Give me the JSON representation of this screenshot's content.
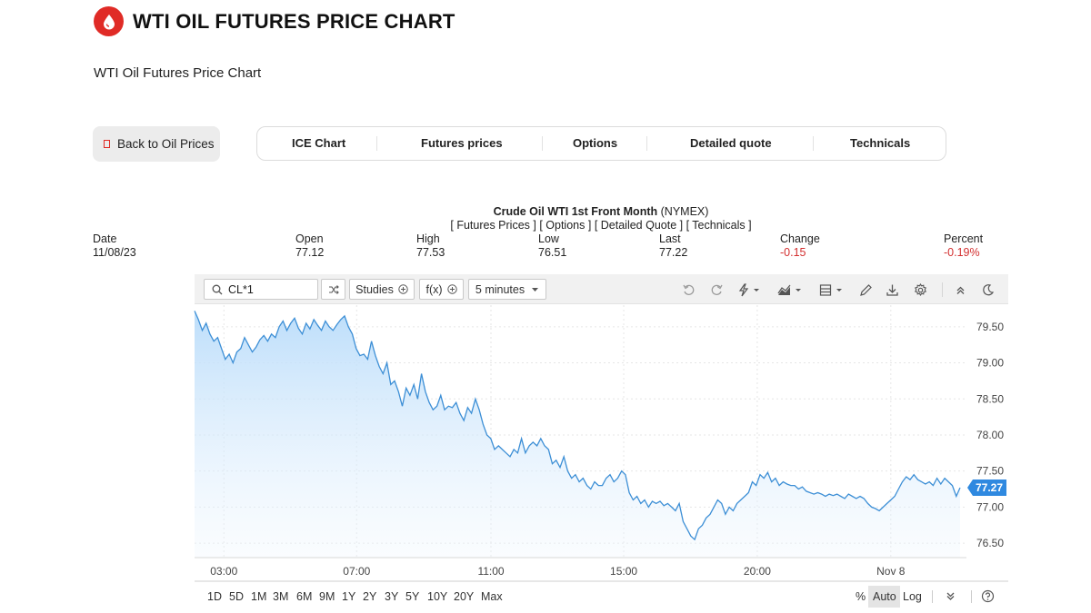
{
  "header": {
    "title": "WTI OIL FUTURES PRICE CHART",
    "subtitle": "WTI Oil Futures Price Chart",
    "logo_icon": "oil-drop-icon",
    "brand_color": "#e02b26"
  },
  "back_button": {
    "label": "Back to Oil Prices"
  },
  "tabs": [
    {
      "label": "ICE Chart"
    },
    {
      "label": "Futures prices"
    },
    {
      "label": "Options"
    },
    {
      "label": "Detailed quote"
    },
    {
      "label": "Technicals"
    }
  ],
  "quote": {
    "name": "Crude Oil WTI 1st Front Month",
    "exchange": "(NYMEX)",
    "links": [
      "[ Futures Prices ]",
      "[ Options ]",
      "[ Detailed Quote ]",
      "[ Technicals ]"
    ],
    "stats": [
      {
        "label": "Date",
        "value": "11/08/23"
      },
      {
        "label": "Open",
        "value": "77.12"
      },
      {
        "label": "High",
        "value": "77.53"
      },
      {
        "label": "Low",
        "value": "76.51"
      },
      {
        "label": "Last",
        "value": "77.22"
      },
      {
        "label": "Change",
        "value": "-0.15"
      },
      {
        "label": "Percent",
        "value": "-0.19%"
      }
    ],
    "negative_color": "#d32f2f"
  },
  "toolbar": {
    "symbol": "CL*1",
    "studies_label": "Studies",
    "fx_label": "f(x)",
    "interval_label": "5 minutes",
    "icons": [
      "undo-icon",
      "redo-icon",
      "lightning-icon",
      "chart-type-icon",
      "layout-icon",
      "pencil-icon",
      "download-icon",
      "settings-icon",
      "collapse-icon",
      "dark-mode-icon"
    ]
  },
  "ranges": [
    "1D",
    "5D",
    "1M",
    "3M",
    "6M",
    "9M",
    "1Y",
    "2Y",
    "3Y",
    "5Y",
    "10Y",
    "20Y",
    "Max"
  ],
  "scale_options": [
    "%",
    "Auto",
    "Log"
  ],
  "chart_data": {
    "type": "area",
    "x_tick_labels": [
      "03:00",
      "07:00",
      "11:00",
      "15:00",
      "20:00",
      "Nov 8"
    ],
    "y_tick_labels": [
      "79.50",
      "79.00",
      "78.50",
      "78.00",
      "77.50",
      "77.00",
      "76.50"
    ],
    "ylim": [
      76.3,
      79.8
    ],
    "last_value_label": "77.27",
    "line_color": "#3d8fd6",
    "accent_color": "#2f89e0",
    "grid": true,
    "values": [
      79.72,
      79.6,
      79.45,
      79.55,
      79.4,
      79.3,
      79.35,
      79.2,
      79.05,
      79.12,
      79.0,
      79.15,
      79.2,
      79.35,
      79.25,
      79.15,
      79.22,
      79.32,
      79.38,
      79.3,
      79.4,
      79.35,
      79.5,
      79.58,
      79.45,
      79.55,
      79.62,
      79.48,
      79.4,
      79.55,
      79.47,
      79.6,
      79.52,
      79.45,
      79.58,
      79.5,
      79.45,
      79.53,
      79.6,
      79.65,
      79.5,
      79.4,
      79.2,
      79.1,
      79.12,
      79.05,
      79.3,
      79.1,
      78.95,
      78.85,
      79.0,
      78.7,
      78.75,
      78.6,
      78.4,
      78.65,
      78.55,
      78.7,
      78.5,
      78.85,
      78.6,
      78.45,
      78.35,
      78.4,
      78.55,
      78.35,
      78.4,
      78.38,
      78.45,
      78.3,
      78.2,
      78.38,
      78.3,
      78.5,
      78.35,
      78.15,
      78.0,
      77.95,
      77.8,
      77.85,
      77.8,
      77.75,
      77.7,
      77.8,
      77.75,
      77.95,
      77.75,
      77.85,
      77.9,
      77.85,
      77.95,
      77.85,
      77.8,
      77.6,
      77.65,
      77.55,
      77.7,
      77.5,
      77.4,
      77.45,
      77.35,
      77.4,
      77.3,
      77.25,
      77.35,
      77.3,
      77.3,
      77.4,
      77.45,
      77.35,
      77.4,
      77.5,
      77.45,
      77.2,
      77.1,
      77.15,
      77.05,
      77.1,
      77.0,
      77.08,
      77.05,
      77.08,
      77.02,
      77.05,
      77.0,
      76.95,
      77.05,
      76.8,
      76.7,
      76.6,
      76.55,
      76.7,
      76.75,
      76.85,
      76.9,
      77.0,
      77.1,
      77.05,
      76.9,
      77.0,
      76.95,
      77.05,
      77.1,
      77.15,
      77.2,
      77.35,
      77.3,
      77.45,
      77.4,
      77.48,
      77.35,
      77.4,
      77.3,
      77.35,
      77.32,
      77.3,
      77.3,
      77.25,
      77.28,
      77.22,
      77.2,
      77.18,
      77.2,
      77.18,
      77.15,
      77.18,
      77.16,
      77.18,
      77.15,
      77.12,
      77.18,
      77.15,
      77.12,
      77.15,
      77.12,
      77.05,
      77.0,
      76.98,
      76.95,
      77.0,
      77.05,
      77.1,
      77.15,
      77.25,
      77.35,
      77.42,
      77.38,
      77.45,
      77.38,
      77.35,
      77.32,
      77.35,
      77.3,
      77.4,
      77.32,
      77.4,
      77.35,
      77.3,
      77.15,
      77.27
    ]
  }
}
